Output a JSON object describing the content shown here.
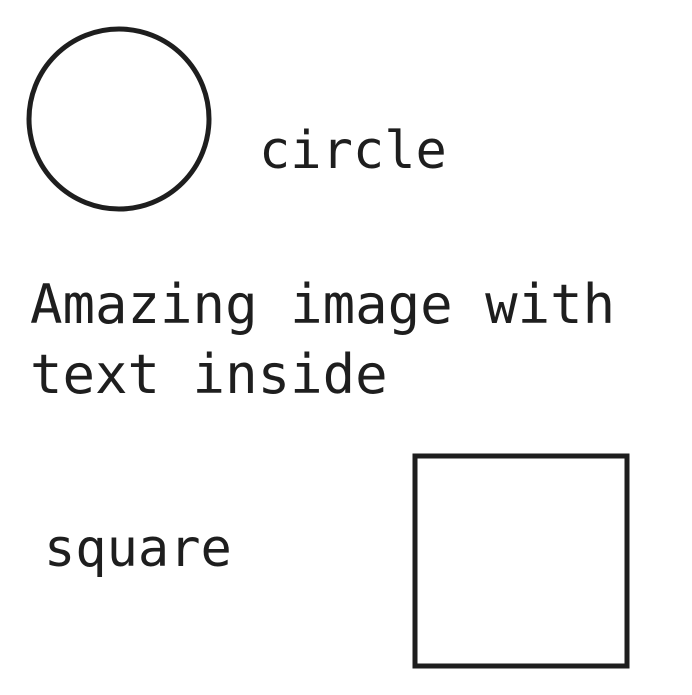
{
  "diagram": {
    "circle_label": "circle",
    "caption_line1": "Amazing image with",
    "caption_line2": "text inside",
    "square_label": "square",
    "stroke_color": "#1e1e1e",
    "background_color": "#ffffff"
  }
}
